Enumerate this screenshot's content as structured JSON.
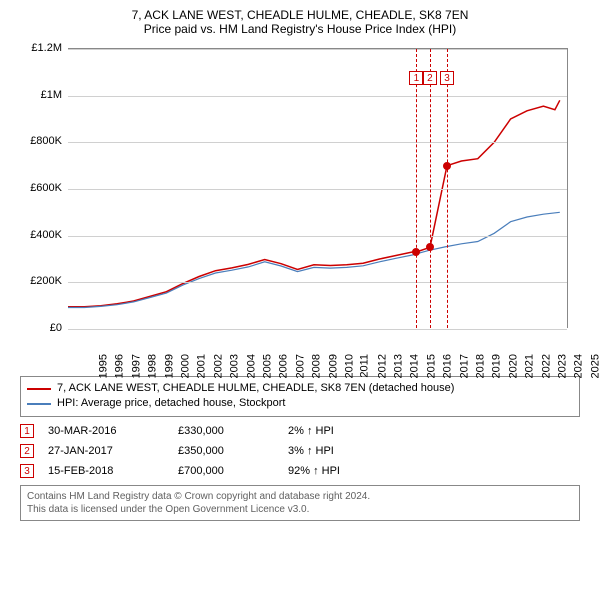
{
  "title_line1": "7, ACK LANE WEST, CHEADLE HULME, CHEADLE, SK8 7EN",
  "title_line2": "Price paid vs. HM Land Registry's House Price Index (HPI)",
  "chart": {
    "type": "line",
    "background_color": "#ffffff",
    "grid_color": "#d0d0d0",
    "axis_color": "#888888",
    "label_fontsize": 11,
    "xlim": [
      1995,
      2025.5
    ],
    "ylim": [
      0,
      1200000
    ],
    "y_ticks": [
      {
        "v": 0,
        "label": "£0"
      },
      {
        "v": 200000,
        "label": "£200K"
      },
      {
        "v": 400000,
        "label": "£400K"
      },
      {
        "v": 600000,
        "label": "£600K"
      },
      {
        "v": 800000,
        "label": "£800K"
      },
      {
        "v": 1000000,
        "label": "£1M"
      },
      {
        "v": 1200000,
        "label": "£1.2M"
      }
    ],
    "x_ticks": [
      1995,
      1996,
      1997,
      1998,
      1999,
      2000,
      2001,
      2002,
      2003,
      2004,
      2005,
      2006,
      2007,
      2008,
      2009,
      2010,
      2011,
      2012,
      2013,
      2014,
      2015,
      2016,
      2017,
      2018,
      2019,
      2020,
      2021,
      2022,
      2023,
      2024,
      2025
    ],
    "series": [
      {
        "id": "property",
        "color": "#cc0000",
        "width": 1.5,
        "data": [
          [
            1995,
            95000
          ],
          [
            1996,
            95000
          ],
          [
            1997,
            100000
          ],
          [
            1998,
            108000
          ],
          [
            1999,
            120000
          ],
          [
            2000,
            140000
          ],
          [
            2001,
            160000
          ],
          [
            2002,
            195000
          ],
          [
            2003,
            225000
          ],
          [
            2004,
            250000
          ],
          [
            2005,
            262000
          ],
          [
            2006,
            277000
          ],
          [
            2007,
            298000
          ],
          [
            2008,
            280000
          ],
          [
            2009,
            255000
          ],
          [
            2010,
            275000
          ],
          [
            2011,
            272000
          ],
          [
            2012,
            275000
          ],
          [
            2013,
            282000
          ],
          [
            2014,
            300000
          ],
          [
            2015,
            315000
          ],
          [
            2016,
            330000
          ],
          [
            2016.25,
            330000
          ],
          [
            2017.08,
            350000
          ],
          [
            2018.12,
            700000
          ],
          [
            2019,
            720000
          ],
          [
            2020,
            730000
          ],
          [
            2021,
            800000
          ],
          [
            2022,
            900000
          ],
          [
            2023,
            935000
          ],
          [
            2024,
            955000
          ],
          [
            2024.7,
            940000
          ],
          [
            2025,
            980000
          ]
        ]
      },
      {
        "id": "hpi",
        "color": "#4a7ebb",
        "width": 1.2,
        "data": [
          [
            1995,
            92000
          ],
          [
            1996,
            92000
          ],
          [
            1997,
            97000
          ],
          [
            1998,
            104000
          ],
          [
            1999,
            116000
          ],
          [
            2000,
            135000
          ],
          [
            2001,
            154000
          ],
          [
            2002,
            188000
          ],
          [
            2003,
            216000
          ],
          [
            2004,
            240000
          ],
          [
            2005,
            252000
          ],
          [
            2006,
            266000
          ],
          [
            2007,
            288000
          ],
          [
            2008,
            270000
          ],
          [
            2009,
            246000
          ],
          [
            2010,
            264000
          ],
          [
            2011,
            261000
          ],
          [
            2012,
            264000
          ],
          [
            2013,
            271000
          ],
          [
            2014,
            288000
          ],
          [
            2015,
            303000
          ],
          [
            2016,
            317000
          ],
          [
            2017,
            337000
          ],
          [
            2018,
            352000
          ],
          [
            2019,
            365000
          ],
          [
            2020,
            375000
          ],
          [
            2021,
            410000
          ],
          [
            2022,
            460000
          ],
          [
            2023,
            480000
          ],
          [
            2024,
            492000
          ],
          [
            2025,
            500000
          ]
        ]
      }
    ],
    "markers": [
      {
        "x": 2016.25,
        "y": 330000,
        "color": "#cc0000"
      },
      {
        "x": 2017.08,
        "y": 350000,
        "color": "#cc0000"
      },
      {
        "x": 2018.12,
        "y": 700000,
        "color": "#cc0000"
      }
    ],
    "event_lines": [
      {
        "x": 2016.25,
        "label": "1",
        "color": "#cc0000"
      },
      {
        "x": 2017.08,
        "label": "2",
        "color": "#cc0000"
      },
      {
        "x": 2018.12,
        "label": "3",
        "color": "#cc0000"
      }
    ]
  },
  "legend": {
    "items": [
      {
        "color": "#cc0000",
        "label": "7, ACK LANE WEST, CHEADLE HULME, CHEADLE, SK8 7EN (detached house)"
      },
      {
        "color": "#4a7ebb",
        "label": "HPI: Average price, detached house, Stockport"
      }
    ]
  },
  "events": [
    {
      "n": "1",
      "date": "30-MAR-2016",
      "price": "£330,000",
      "delta": "2% ↑ HPI"
    },
    {
      "n": "2",
      "date": "27-JAN-2017",
      "price": "£350,000",
      "delta": "3% ↑ HPI"
    },
    {
      "n": "3",
      "date": "15-FEB-2018",
      "price": "£700,000",
      "delta": "92% ↑ HPI"
    }
  ],
  "attribution_line1": "Contains HM Land Registry data © Crown copyright and database right 2024.",
  "attribution_line2": "This data is licensed under the Open Government Licence v3.0."
}
